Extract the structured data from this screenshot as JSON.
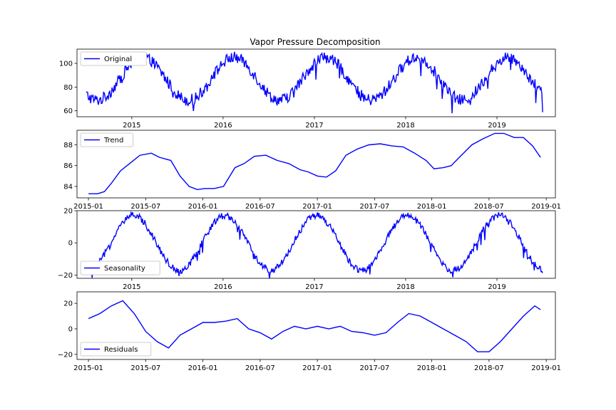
{
  "figure_title": "Vapor Pressure Decomposition",
  "line_color": "#0000ff",
  "chart_data": [
    {
      "type": "line",
      "name": "original",
      "legend": "Original",
      "legend_placement": "upper-left",
      "x_axis": "date",
      "xlim": [
        2014.4,
        2019.64
      ],
      "xticks": [
        2015,
        2016,
        2017,
        2018,
        2019
      ],
      "xtick_labels": [
        "2015",
        "2016",
        "2017",
        "2018",
        "2019"
      ],
      "ylim": [
        55,
        112
      ],
      "yticks": [
        60,
        80,
        100
      ],
      "ytick_labels": [
        "60",
        "80",
        "100"
      ],
      "x_start": 2014.5,
      "x_end": 2019.5,
      "approx_series": {
        "base": 87,
        "amplitude": 18,
        "peak_phase": 0.12,
        "noise": 7
      }
    },
    {
      "type": "line",
      "name": "trend",
      "legend": "Trend",
      "legend_placement": "upper-left",
      "x_axis": "date",
      "xlim": [
        2014.9,
        2019.08
      ],
      "xticks": [
        2015.0,
        2015.5,
        2016.0,
        2016.5,
        2017.0,
        2017.5,
        2018.0,
        2018.5,
        2019.0
      ],
      "xtick_labels": [
        "2015-01",
        "2015-07",
        "2016-01",
        "2016-07",
        "2017-01",
        "2017-07",
        "2018-01",
        "2018-07",
        "2019-01"
      ],
      "ylim": [
        82.9,
        89.4
      ],
      "yticks": [
        84,
        86,
        88
      ],
      "ytick_labels": [
        "84",
        "86",
        "88"
      ],
      "x": [
        2015.0,
        2015.08,
        2015.14,
        2015.2,
        2015.28,
        2015.36,
        2015.45,
        2015.55,
        2015.62,
        2015.72,
        2015.8,
        2015.88,
        2015.95,
        2016.02,
        2016.1,
        2016.18,
        2016.28,
        2016.36,
        2016.45,
        2016.55,
        2016.65,
        2016.75,
        2016.85,
        2016.92,
        2017.0,
        2017.08,
        2017.16,
        2017.25,
        2017.35,
        2017.45,
        2017.55,
        2017.65,
        2017.75,
        2017.85,
        2017.95,
        2018.02,
        2018.1,
        2018.17,
        2018.25,
        2018.35,
        2018.45,
        2018.55,
        2018.63,
        2018.72,
        2018.8,
        2018.88,
        2018.95
      ],
      "values": [
        83.3,
        83.3,
        83.5,
        84.3,
        85.5,
        86.2,
        87.0,
        87.2,
        86.8,
        86.5,
        85.0,
        84.0,
        83.7,
        83.8,
        83.8,
        84.0,
        85.8,
        86.2,
        86.9,
        87.0,
        86.5,
        86.2,
        85.6,
        85.4,
        85.0,
        84.9,
        85.5,
        87.0,
        87.6,
        88.0,
        88.1,
        87.9,
        87.8,
        87.2,
        86.5,
        85.7,
        85.8,
        86.0,
        86.9,
        88.0,
        88.6,
        89.1,
        89.1,
        88.7,
        88.7,
        87.9,
        86.8
      ]
    },
    {
      "type": "line",
      "name": "seasonality",
      "legend": "Seasonality",
      "legend_placement": "lower-left",
      "x_axis": "date",
      "xlim": [
        2014.4,
        2019.64
      ],
      "xticks": [
        2015,
        2016,
        2017,
        2018,
        2019
      ],
      "xtick_labels": [
        "2015",
        "2016",
        "2017",
        "2018",
        "2019"
      ],
      "ylim": [
        -22,
        20
      ],
      "yticks": [
        -20,
        0,
        20
      ],
      "ytick_labels": [
        "−20",
        "0",
        "20"
      ],
      "x_start": 2014.5,
      "x_end": 2019.5,
      "approx_series": {
        "base": 0,
        "amplitude": 17,
        "peak_phase": 0.02,
        "noise": 3
      }
    },
    {
      "type": "line",
      "name": "residuals",
      "legend": "Residuals",
      "legend_placement": "lower-left",
      "x_axis": "date",
      "xlim": [
        2014.9,
        2019.08
      ],
      "xticks": [
        2015.0,
        2015.5,
        2016.0,
        2016.5,
        2017.0,
        2017.5,
        2018.0,
        2018.5,
        2019.0
      ],
      "xtick_labels": [
        "2015-01",
        "2015-07",
        "2016-01",
        "2016-07",
        "2017-01",
        "2017-07",
        "2018-01",
        "2018-07",
        "2019-01"
      ],
      "ylim": [
        -24,
        29
      ],
      "yticks": [
        -20,
        0,
        20
      ],
      "ytick_labels": [
        "−20",
        "0",
        "20"
      ],
      "x": [
        2015.0,
        2015.1,
        2015.2,
        2015.3,
        2015.4,
        2015.5,
        2015.6,
        2015.7,
        2015.8,
        2015.9,
        2016.0,
        2016.1,
        2016.2,
        2016.3,
        2016.4,
        2016.5,
        2016.6,
        2016.7,
        2016.8,
        2016.9,
        2017.0,
        2017.1,
        2017.2,
        2017.3,
        2017.4,
        2017.5,
        2017.6,
        2017.7,
        2017.8,
        2017.9,
        2018.0,
        2018.1,
        2018.2,
        2018.3,
        2018.4,
        2018.5,
        2018.6,
        2018.7,
        2018.8,
        2018.9,
        2018.95
      ],
      "values": [
        8,
        12,
        18,
        22,
        12,
        -2,
        -10,
        -15,
        -5,
        0,
        5,
        5,
        6,
        8,
        0,
        -3,
        -8,
        -2,
        2,
        0,
        2,
        0,
        2,
        -2,
        -3,
        -5,
        -3,
        5,
        12,
        10,
        5,
        0,
        -5,
        -10,
        -18,
        -18,
        -10,
        0,
        10,
        18,
        15
      ]
    }
  ]
}
